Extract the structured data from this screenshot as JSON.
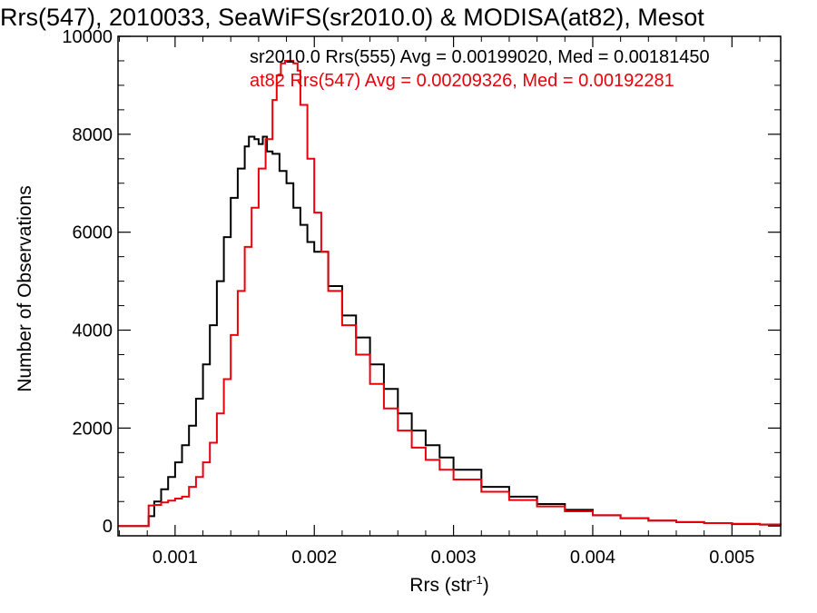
{
  "chart_data": {
    "type": "line",
    "title": "Rrs(547), 2010033, SeaWiFS(sr2010.0) & MODISA(at82), Mesot",
    "xlabel": "Rrs (str",
    "xlabel_sup": "-1",
    "xlabel_end": ")",
    "ylabel": "Number of Observations",
    "xlim": [
      0.00059,
      0.00535
    ],
    "ylim": [
      -200,
      10000
    ],
    "x_ticks": [
      0.001,
      0.002,
      0.003,
      0.004,
      0.005
    ],
    "x_tick_labels": [
      "0.001",
      "0.002",
      "0.003",
      "0.004",
      "0.005"
    ],
    "y_ticks": [
      0,
      2000,
      4000,
      6000,
      8000,
      10000
    ],
    "y_tick_labels": [
      "0",
      "2000",
      "4000",
      "6000",
      "8000",
      "10000"
    ],
    "grid": false,
    "legend": "top-right",
    "series": [
      {
        "name": "sr2010.0 Rrs(555) Avg = 0.00199020, Med = 0.00181450",
        "color": "#000000",
        "step": true,
        "x": [
          0.00059,
          0.0008,
          0.00081,
          0.00085,
          0.0009,
          0.00095,
          0.001,
          0.00105,
          0.0011,
          0.00115,
          0.0012,
          0.00125,
          0.0013,
          0.00135,
          0.0014,
          0.00145,
          0.0015,
          0.00153,
          0.00157,
          0.0016,
          0.00163,
          0.00166,
          0.0017,
          0.00175,
          0.0018,
          0.00185,
          0.0019,
          0.00195,
          0.002,
          0.0021,
          0.0022,
          0.0023,
          0.0024,
          0.0025,
          0.0026,
          0.0027,
          0.0028,
          0.0029,
          0.003,
          0.0032,
          0.0034,
          0.0036,
          0.0038,
          0.004,
          0.0042,
          0.0044,
          0.0046,
          0.0048,
          0.005,
          0.0052,
          0.00535
        ],
        "y": [
          0,
          0,
          200,
          500,
          750,
          1000,
          1300,
          1650,
          2050,
          2600,
          3300,
          4100,
          5000,
          5900,
          6700,
          7300,
          7750,
          7950,
          7900,
          7800,
          7950,
          7650,
          7600,
          7250,
          7000,
          6500,
          6150,
          5800,
          5600,
          4900,
          4300,
          3850,
          3300,
          2800,
          2300,
          1950,
          1650,
          1400,
          1150,
          800,
          600,
          450,
          330,
          220,
          160,
          110,
          80,
          60,
          40,
          30,
          20
        ]
      },
      {
        "name": "at82 Rrs(547) Avg = 0.00209326, Med = 0.00192281",
        "color": "#e8000b",
        "step": true,
        "x": [
          0.00059,
          0.0008,
          0.00081,
          0.00085,
          0.0009,
          0.00095,
          0.001,
          0.00105,
          0.0011,
          0.00115,
          0.0012,
          0.00125,
          0.0013,
          0.00135,
          0.0014,
          0.00145,
          0.0015,
          0.00155,
          0.0016,
          0.00165,
          0.0017,
          0.00173,
          0.00176,
          0.00179,
          0.00182,
          0.00185,
          0.00188,
          0.0019,
          0.00195,
          0.002,
          0.00205,
          0.0021,
          0.0022,
          0.0023,
          0.0024,
          0.0025,
          0.0026,
          0.0027,
          0.0028,
          0.0029,
          0.003,
          0.0032,
          0.0034,
          0.0036,
          0.0038,
          0.004,
          0.0042,
          0.0044,
          0.0046,
          0.0048,
          0.005,
          0.0052,
          0.00535
        ],
        "y": [
          0,
          0,
          420,
          430,
          480,
          520,
          560,
          600,
          800,
          1000,
          1300,
          1700,
          2300,
          3000,
          3900,
          4800,
          5700,
          6500,
          7300,
          7900,
          8700,
          9200,
          9450,
          9500,
          9500,
          9450,
          9300,
          8600,
          7500,
          6400,
          5600,
          4800,
          4100,
          3500,
          2900,
          2400,
          1950,
          1600,
          1350,
          1150,
          950,
          700,
          530,
          400,
          300,
          220,
          160,
          110,
          80,
          60,
          45,
          30,
          20
        ]
      }
    ]
  }
}
